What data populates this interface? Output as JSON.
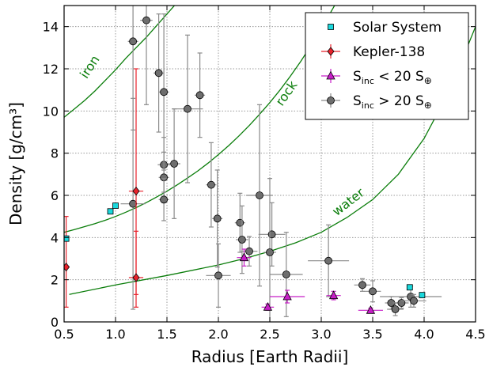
{
  "chart_data": {
    "type": "scatter",
    "xlabel": "Radius [Earth Radii]",
    "ylabel": "Density [g/cm³]",
    "xlim": [
      0.5,
      4.5
    ],
    "ylim": [
      0,
      15
    ],
    "xticks": [
      "0.5",
      "1.0",
      "1.5",
      "2.0",
      "2.5",
      "3.0",
      "3.5",
      "4.0",
      "4.5"
    ],
    "yticks": [
      "0",
      "2",
      "4",
      "6",
      "8",
      "10",
      "12",
      "14"
    ],
    "grid": true,
    "legend_position": "top-right",
    "composition_curves": [
      {
        "label": "iron",
        "color": "#0a7d0a",
        "x": [
          0.5,
          0.6,
          0.7,
          0.8,
          0.9,
          1.0,
          1.1,
          1.2,
          1.3,
          1.4,
          1.5,
          1.6,
          1.7,
          1.8,
          1.9,
          2.0,
          2.05
        ],
        "y": [
          9.7,
          10.1,
          10.5,
          10.95,
          11.45,
          11.95,
          12.5,
          13.0,
          13.5,
          14.05,
          14.6,
          15.15,
          15.7,
          16.2,
          16.7,
          17.2,
          17.5
        ]
      },
      {
        "label": "rock",
        "color": "#0a7d0a",
        "x": [
          0.5,
          0.6,
          0.7,
          0.8,
          0.9,
          1.0,
          1.1,
          1.2,
          1.3,
          1.4,
          1.5,
          1.6,
          1.7,
          1.8,
          1.9,
          2.0,
          2.1,
          2.2,
          2.3,
          2.4,
          2.5,
          2.6,
          2.7,
          2.8,
          2.9,
          3.0,
          3.1,
          3.2,
          3.3
        ],
        "y": [
          4.25,
          4.38,
          4.52,
          4.66,
          4.82,
          5.0,
          5.2,
          5.42,
          5.66,
          5.92,
          6.2,
          6.5,
          6.82,
          7.16,
          7.53,
          7.93,
          8.36,
          8.82,
          9.31,
          9.84,
          10.4,
          11.0,
          11.65,
          12.35,
          13.1,
          13.9,
          14.75,
          15.6,
          16.4
        ]
      },
      {
        "label": "water",
        "color": "#0a7d0a",
        "x": [
          0.55,
          1.0,
          1.5,
          2.0,
          2.25,
          2.5,
          2.75,
          3.0,
          3.25,
          3.5,
          3.75,
          4.0,
          4.25,
          4.5
        ],
        "y": [
          1.3,
          1.75,
          2.2,
          2.7,
          3.0,
          3.35,
          3.75,
          4.25,
          4.95,
          5.8,
          7.0,
          8.7,
          11.0,
          14.0
        ]
      }
    ],
    "series": [
      {
        "name": "Solar System",
        "marker": "square",
        "color": "#1ad8dc",
        "points": [
          {
            "x": 0.52,
            "y": 3.95
          },
          {
            "x": 0.95,
            "y": 5.24
          },
          {
            "x": 1.0,
            "y": 5.51
          },
          {
            "x": 3.86,
            "y": 1.64
          },
          {
            "x": 3.98,
            "y": 1.27
          }
        ]
      },
      {
        "name": "Kepler-138",
        "marker": "diamond",
        "color": "#e8212b",
        "points": [
          {
            "x": 0.52,
            "y": 2.6,
            "xerr": 0.03,
            "yerr_low": 1.9,
            "yerr_high": 2.4
          },
          {
            "x": 1.2,
            "y": 6.2,
            "xerr": 0.07,
            "yerr_low": 4.9,
            "yerr_high": 5.8
          },
          {
            "x": 1.2,
            "y": 2.1,
            "xerr": 0.07,
            "yerr_low": 1.4,
            "yerr_high": 2.2
          }
        ]
      },
      {
        "name": "S_inc < 20 S_⊕",
        "marker": "triangle",
        "color": "#c81fc8",
        "points": [
          {
            "x": 2.25,
            "y": 3.05,
            "xerr": 0.07,
            "yerr": 0.4
          },
          {
            "x": 2.48,
            "y": 0.7,
            "xerr": 0.06,
            "yerr": 0.15
          },
          {
            "x": 2.67,
            "y": 1.2,
            "xerr": 0.17,
            "yerr": 0.3
          },
          {
            "x": 3.12,
            "y": 1.25,
            "xerr": 0.07,
            "yerr": 0.2
          },
          {
            "x": 3.48,
            "y": 0.55,
            "xerr": 0.12,
            "yerr": 0.1
          }
        ]
      },
      {
        "name": "S_inc > 20 S_⊕",
        "marker": "circle",
        "color": "#6e6e6e",
        "points": [
          {
            "x": 1.17,
            "y": 13.3,
            "xerr": 0.05,
            "yerr": 4.2
          },
          {
            "x": 1.3,
            "y": 14.3,
            "xerr": 0.06,
            "yerr": 4.0
          },
          {
            "x": 1.42,
            "y": 11.8,
            "xerr": 0.05,
            "yerr": 2.8
          },
          {
            "x": 1.47,
            "y": 10.9,
            "xerr": 0.05,
            "yerr": 3.7
          },
          {
            "x": 1.7,
            "y": 10.1,
            "xerr": 0.15,
            "yerr": 3.5
          },
          {
            "x": 1.82,
            "y": 10.75,
            "xerr": 0.05,
            "yerr": 2.0
          },
          {
            "x": 1.47,
            "y": 7.45,
            "xerr": 0.06,
            "yerr": 1.3
          },
          {
            "x": 1.57,
            "y": 7.5,
            "xerr": 0.06,
            "yerr": 2.6
          },
          {
            "x": 1.47,
            "y": 6.85,
            "xerr": 0.05,
            "yerr": 1.2
          },
          {
            "x": 1.17,
            "y": 5.6,
            "xerr": 0.12,
            "yerr": 5.0
          },
          {
            "x": 1.47,
            "y": 5.8,
            "xerr": 0.05,
            "yerr": 1.0
          },
          {
            "x": 1.93,
            "y": 6.5,
            "xerr": 0.05,
            "yerr": 2.0
          },
          {
            "x": 1.99,
            "y": 4.9,
            "xerr": 0.05,
            "yerr": 2.3
          },
          {
            "x": 2.4,
            "y": 6.0,
            "xerr": 0.13,
            "yerr": 4.3
          },
          {
            "x": 2.21,
            "y": 4.7,
            "xerr": 0.05,
            "yerr": 1.4
          },
          {
            "x": 2.23,
            "y": 3.9,
            "xerr": 0.06,
            "yerr": 1.6
          },
          {
            "x": 2.52,
            "y": 4.15,
            "xerr": 0.13,
            "yerr": 1.5
          },
          {
            "x": 2.5,
            "y": 3.3,
            "xerr": 0.06,
            "yerr": 3.5
          },
          {
            "x": 2.3,
            "y": 3.35,
            "xerr": 0.08,
            "yerr": 0.7
          },
          {
            "x": 2.0,
            "y": 2.2,
            "xerr": 0.12,
            "yerr": 1.5
          },
          {
            "x": 2.66,
            "y": 2.25,
            "xerr": 0.16,
            "yerr": 2.0
          },
          {
            "x": 3.07,
            "y": 2.9,
            "xerr": 0.2,
            "yerr": 1.7
          },
          {
            "x": 3.4,
            "y": 1.75,
            "xerr": 0.08,
            "yerr": 0.3
          },
          {
            "x": 3.5,
            "y": 1.45,
            "xerr": 0.08,
            "yerr": 0.5
          },
          {
            "x": 3.68,
            "y": 0.9,
            "xerr": 0.06,
            "yerr": 0.3
          },
          {
            "x": 3.72,
            "y": 0.6,
            "xerr": 0.08,
            "yerr": 0.3
          },
          {
            "x": 3.78,
            "y": 0.9,
            "xerr": 0.07,
            "yerr": 0.25
          },
          {
            "x": 3.87,
            "y": 1.2,
            "xerr": 0.3,
            "yerr": 0.5
          },
          {
            "x": 3.9,
            "y": 1.0,
            "xerr": 0.12,
            "yerr": 0.3
          }
        ]
      }
    ]
  }
}
